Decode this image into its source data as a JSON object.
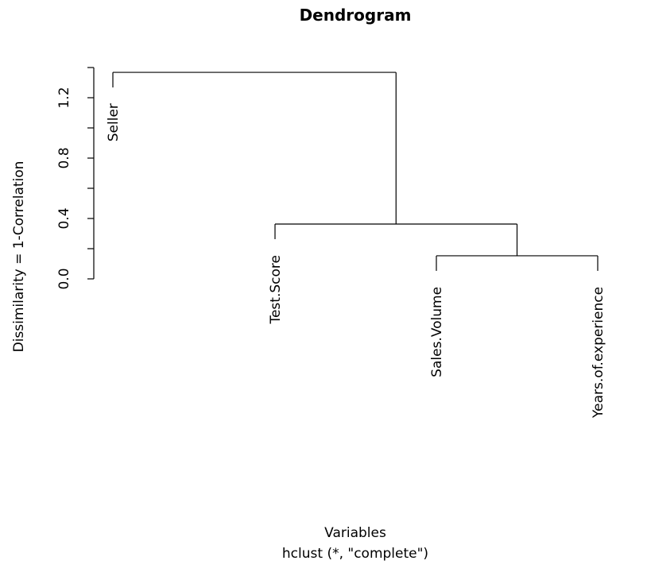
{
  "chart_data": {
    "type": "dendrogram",
    "title": "Dendrogram",
    "xlabel": "Variables",
    "sub": "hclust (*, \"complete\")",
    "ylabel": "Dissimilarity = 1-Correlation",
    "ylim": [
      0,
      1.4
    ],
    "yticks": [
      "0.0",
      "0.4",
      "0.8",
      "1.2"
    ],
    "ytick_values": [
      0,
      0.4,
      0.8,
      1.2
    ],
    "ytick_minor": [
      0.2,
      0.6,
      1.0,
      1.4
    ],
    "leaves": [
      "Seller",
      "Test.Score",
      "Sales.Volume",
      "Years.of.experience"
    ],
    "merges": [
      {
        "left": "Sales.Volume",
        "right": "Years.of.experience",
        "height": 0.153
      },
      {
        "left": "Test.Score",
        "right": "merge1",
        "height": 0.363
      },
      {
        "left": "Seller",
        "right": "merge2",
        "height": 1.368
      }
    ],
    "hang": 0.1,
    "line_color": "#000000"
  }
}
